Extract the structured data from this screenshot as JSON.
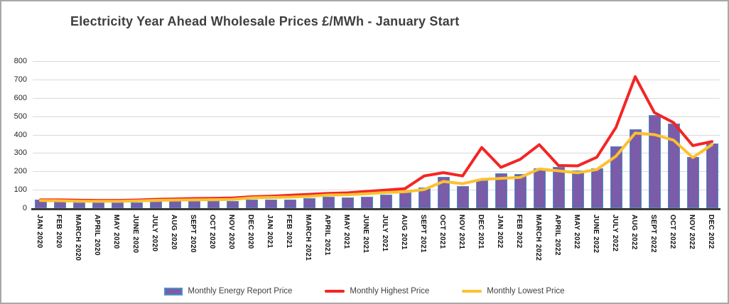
{
  "chart_data": {
    "type": "combo",
    "title": "Electricity Year Ahead Wholesale Prices £/MWh - January Start",
    "categories": [
      "JAN 2020",
      "FEB 2020",
      "MARCH 2020",
      "APRIL 2020",
      "MAY 2020",
      "JUNE 2020",
      "JULY 2020",
      "AUG 2020",
      "SEPT 2020",
      "OCT 2020",
      "NOV 2020",
      "DEC 2020",
      "JAN 2021",
      "FEB 2021",
      "MARCH 2021",
      "APRIL 2021",
      "MAY 2021",
      "JUNE 2021",
      "JULY 2021",
      "AUG 2021",
      "SEPT 2021",
      "OCT 2021",
      "NOV 2021",
      "DEC 2021",
      "JAN 2022",
      "FEB 2022",
      "MARCH 2022",
      "APRIL 2022",
      "MAY 2022",
      "JUNE 2022",
      "JULY 2022",
      "AUG 2022",
      "SEPT 2022",
      "OCT 2022",
      "NOV 2022",
      "DEC 2022"
    ],
    "series": [
      {
        "name": "Monthly Energy Report Price",
        "type": "bar",
        "color": "#7a5ca8",
        "border_color": "#4a92c9",
        "values": [
          46,
          33,
          30,
          29,
          29,
          32,
          36,
          39,
          39,
          40,
          40,
          45,
          46,
          48,
          55,
          60,
          58,
          63,
          72,
          85,
          113,
          170,
          118,
          152,
          190,
          185,
          215,
          225,
          205,
          215,
          335,
          430,
          505,
          460,
          280,
          350
        ]
      },
      {
        "name": "Monthly Highest Price",
        "type": "line",
        "color": "#f42525",
        "values": [
          45,
          45,
          43,
          42,
          42,
          44,
          48,
          50,
          52,
          53,
          55,
          62,
          65,
          70,
          75,
          80,
          83,
          91,
          98,
          106,
          175,
          193,
          175,
          330,
          222,
          265,
          345,
          232,
          230,
          277,
          440,
          715,
          520,
          465,
          340,
          362
        ]
      },
      {
        "name": "Monthly Lowest Price",
        "type": "line",
        "color": "#fdc02f",
        "values": [
          41,
          40,
          38,
          37,
          37,
          39,
          42,
          44,
          45,
          46,
          47,
          56,
          58,
          60,
          64,
          71,
          73,
          78,
          85,
          89,
          101,
          145,
          133,
          156,
          162,
          167,
          213,
          203,
          192,
          210,
          283,
          408,
          400,
          370,
          275,
          345
        ]
      }
    ],
    "ylim": [
      0,
      800
    ],
    "ytick_step": 100,
    "ytick_labels": [
      "0",
      "100",
      "200",
      "300",
      "400",
      "500",
      "600",
      "700",
      "800"
    ],
    "grid": true,
    "legend_position": "bottom",
    "xlabel": "",
    "ylabel": ""
  },
  "colors": {
    "gridline": "#d9d9d9",
    "axis_line": "#3b3b3b",
    "title_text": "#3f3f3f",
    "background": "#ffffff"
  }
}
